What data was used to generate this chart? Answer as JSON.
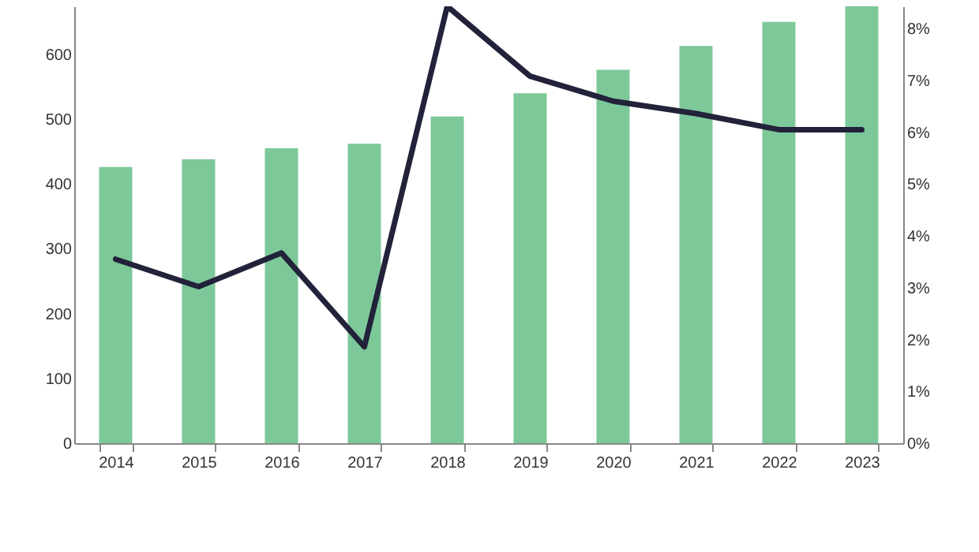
{
  "chart_data": {
    "type": "bar",
    "categories": [
      "2014",
      "2015",
      "2016",
      "2017",
      "2018",
      "2019",
      "2020",
      "2021",
      "2022",
      "2023"
    ],
    "series": [
      {
        "color": "#7dc899",
        "values": [
          426,
          438,
          455,
          462,
          504,
          540,
          576,
          613,
          650,
          674
        ]
      },
      {
        "type": "line",
        "axis": "y2",
        "color": "#22223a",
        "values": [
          3.55,
          3.02,
          3.67,
          1.86,
          8.43,
          7.08,
          6.6,
          6.36,
          6.05,
          6.05
        ]
      }
    ],
    "ylim": [
      0,
      674
    ],
    "yticks": [
      0,
      100,
      200,
      300,
      400,
      500,
      600
    ],
    "y2lim": [
      0,
      8.43
    ],
    "y2ticks": [
      {
        "value": 0,
        "label": "0%"
      },
      {
        "value": 1,
        "label": "1%"
      },
      {
        "value": 2,
        "label": "2%"
      },
      {
        "value": 3,
        "label": "3%"
      },
      {
        "value": 4,
        "label": "4%"
      },
      {
        "value": 5,
        "label": "5%"
      },
      {
        "value": 6,
        "label": "6%"
      },
      {
        "value": 7,
        "label": "7%"
      },
      {
        "value": 8,
        "label": "8%"
      }
    ]
  }
}
